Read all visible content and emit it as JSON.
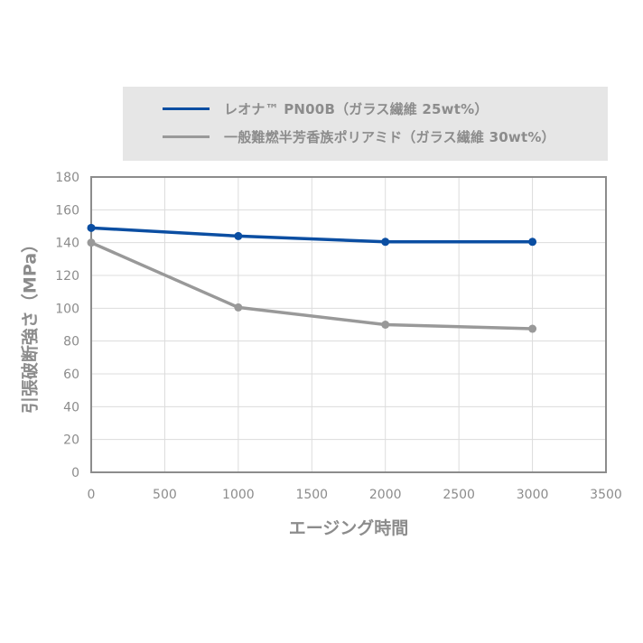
{
  "chart_data": {
    "type": "line",
    "xlabel": "エージング時間",
    "ylabel": "引張破断強さ（MPa）",
    "xlim": [
      0,
      3500
    ],
    "ylim": [
      0,
      180
    ],
    "xticks": [
      0,
      500,
      1000,
      1500,
      2000,
      2500,
      3000,
      3500
    ],
    "yticks": [
      0,
      20,
      40,
      60,
      80,
      100,
      120,
      140,
      160,
      180
    ],
    "grid": true,
    "legend_position": "top",
    "series": [
      {
        "name": "レオナ™ PN00B（ガラス繊維 25wt%）",
        "color": "#0b4ea2",
        "x": [
          0,
          1000,
          2000,
          3000
        ],
        "y": [
          149,
          144,
          140.5,
          140.5
        ]
      },
      {
        "name": "一般難燃半芳香族ポリアミド（ガラス繊維 30wt%）",
        "color": "#999999",
        "x": [
          0,
          1000,
          2000,
          3000
        ],
        "y": [
          140,
          100.5,
          90,
          87.5
        ]
      }
    ]
  }
}
